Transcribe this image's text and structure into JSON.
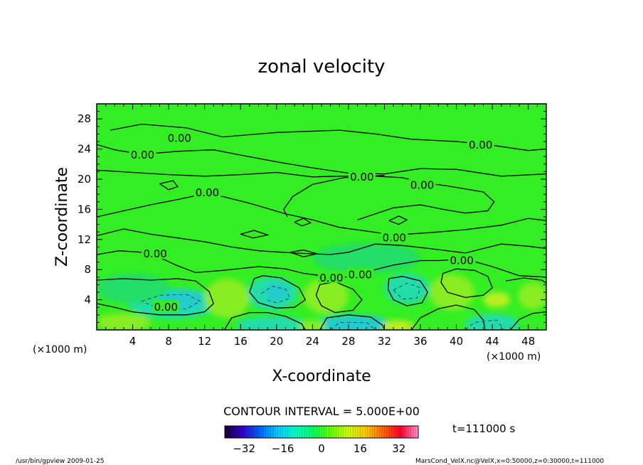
{
  "chart_data": {
    "type": "heatmap",
    "title": "zonal velocity",
    "xlabel": "X-coordinate",
    "ylabel": "Z-coordinate",
    "x_unit": "(×1000 m)",
    "z_unit": "(×1000 m)",
    "xlim": [
      0,
      50
    ],
    "ylim": [
      0,
      30
    ],
    "x_ticks": [
      4,
      8,
      12,
      16,
      20,
      24,
      28,
      32,
      36,
      40,
      44,
      48
    ],
    "y_ticks": [
      4,
      8,
      12,
      16,
      20,
      24,
      28
    ],
    "contour_interval_text": "CONTOUR INTERVAL = 5.000E+00",
    "zero_contour_label": "0.00",
    "zero_contour_label_positions": [
      {
        "x": 9.2,
        "z": 25.5
      },
      {
        "x": 5.1,
        "z": 23.3
      },
      {
        "x": 12.3,
        "z": 18.3
      },
      {
        "x": 29.5,
        "z": 20.4
      },
      {
        "x": 36.2,
        "z": 19.3
      },
      {
        "x": 42.7,
        "z": 24.6
      },
      {
        "x": 33.1,
        "z": 12.3
      },
      {
        "x": 6.5,
        "z": 10.2
      },
      {
        "x": 40.6,
        "z": 9.3
      },
      {
        "x": 26.1,
        "z": 7.0
      },
      {
        "x": 29.3,
        "z": 7.4
      },
      {
        "x": 7.7,
        "z": 3.1
      }
    ],
    "colorbar": {
      "range": [
        -40,
        40
      ],
      "ticks": [
        -32,
        -16,
        0,
        16,
        32
      ],
      "colors_low_to_high": [
        "#1a0033",
        "#3300cc",
        "#0066ff",
        "#00ccff",
        "#00ffcc",
        "#00ff66",
        "#66ff00",
        "#ccff00",
        "#ffcc00",
        "#ff6600",
        "#ff0033",
        "#ff99cc"
      ]
    },
    "field_colors": {
      "background": "#33ee22",
      "weak_negative": "#22dd66",
      "negative": "#22ddaa",
      "strong_negative": "#22cccc",
      "positive": "#88ee22",
      "strong_positive": "#bbee22"
    },
    "time_label": "t=111000 s"
  },
  "footer": {
    "left": "/usr/bin/gpview  2009-01-25",
    "right": "MarsCond_VelX.nc@VelX,x=0:50000,z=0:30000,t=111000"
  }
}
